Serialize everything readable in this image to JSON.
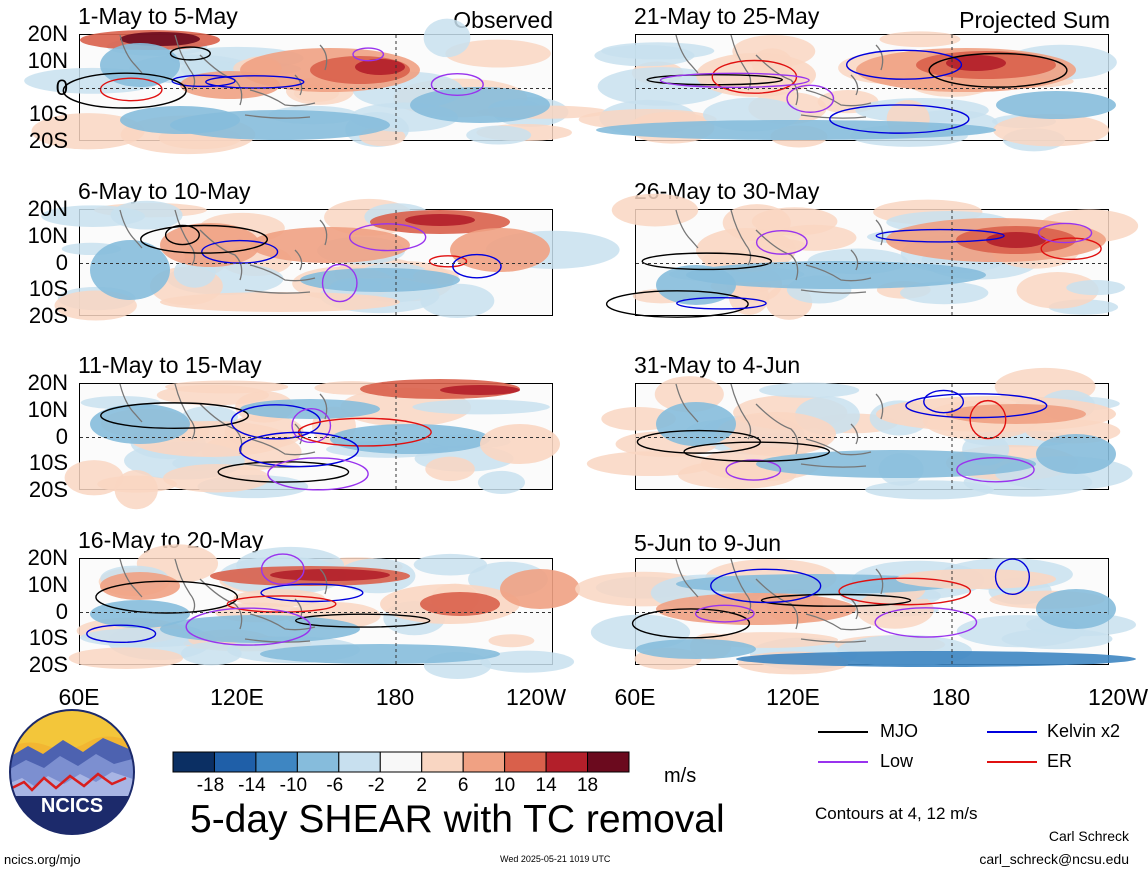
{
  "figure": {
    "title": "5-day SHEAR with TC removal",
    "units": "m/s",
    "contour_note": "Contours at 4, 12 m/s",
    "author": "Carl Schreck",
    "email": "carl_schreck@ncsu.edu",
    "url": "ncics.org/mjo",
    "timestamp": "Wed 2025-05-21 1019 UTC",
    "logo_text": "NCICS"
  },
  "panels_left": [
    {
      "title": "1-May to 5-May",
      "tag": "Observed"
    },
    {
      "title": "6-May to 10-May",
      "tag": ""
    },
    {
      "title": "11-May to 15-May",
      "tag": ""
    },
    {
      "title": "16-May to 20-May",
      "tag": ""
    }
  ],
  "panels_right": [
    {
      "title": "21-May to 25-May",
      "tag": "Projected Sum"
    },
    {
      "title": "26-May to 30-May",
      "tag": ""
    },
    {
      "title": "31-May to 4-Jun",
      "tag": ""
    },
    {
      "title": "5-Jun to 9-Jun",
      "tag": ""
    }
  ],
  "y_ticks": [
    "20N",
    "10N",
    "0",
    "10S",
    "20S"
  ],
  "x_ticks_left": [
    "60E",
    "120E",
    "180",
    "120W"
  ],
  "x_ticks_right": [
    "60E",
    "120E",
    "180",
    "120W"
  ],
  "colorbar": {
    "levels": [
      "-18",
      "-14",
      "-10",
      "-6",
      "-2",
      "2",
      "6",
      "10",
      "14",
      "18"
    ],
    "colors": [
      "#0b2f63",
      "#1f5fa8",
      "#3e86c2",
      "#86bcdc",
      "#c8e0ef",
      "#f8f8f8",
      "#f9d6c2",
      "#f0a183",
      "#d9604b",
      "#b31f2a",
      "#6b0a1e"
    ]
  },
  "legend": [
    {
      "label": "MJO",
      "color": "#000000"
    },
    {
      "label": "Kelvin x2",
      "color": "#0000dd"
    },
    {
      "label": "Low",
      "color": "#9933ee"
    },
    {
      "label": "ER",
      "color": "#e01010"
    }
  ]
}
